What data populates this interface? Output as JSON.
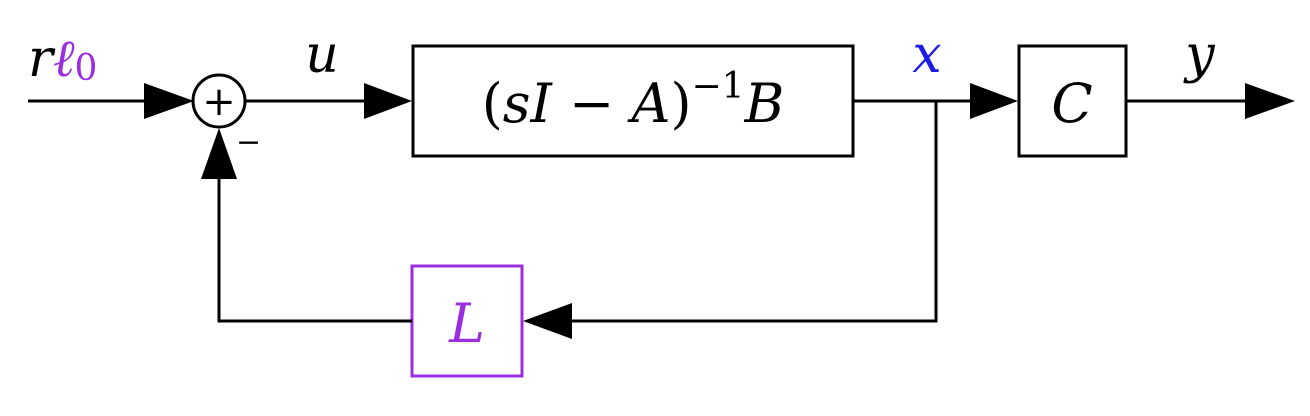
{
  "colors": {
    "line": "#000000",
    "accent_purple": "#9b2fe0",
    "accent_blue": "#1c1ce6"
  },
  "input": {
    "r": "r",
    "ell": "ℓ",
    "sub": "0"
  },
  "summing_junction": {
    "plus": "+",
    "minus_sign": "−"
  },
  "signals": {
    "u": "u",
    "x": "x",
    "y": "y"
  },
  "plant_block": {
    "lparen": "(",
    "s": "s",
    "I": "I",
    "minus": " − ",
    "A": "A",
    "rparen": ")",
    "exponent": "−1",
    "B": "B"
  },
  "output_block": {
    "label": "C"
  },
  "feedback_block": {
    "label": "L"
  }
}
